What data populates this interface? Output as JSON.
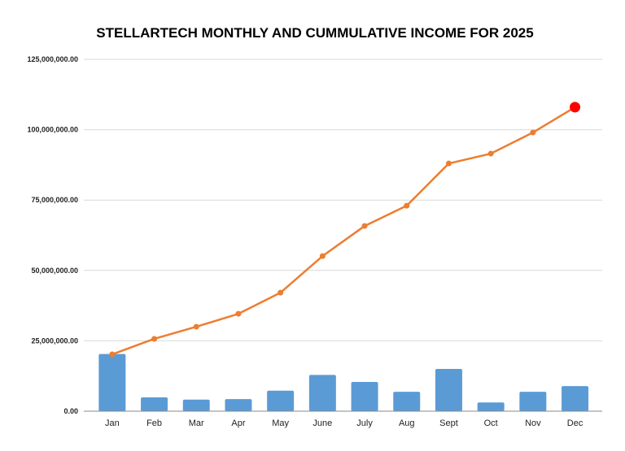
{
  "chart_data": {
    "type": "bar+line",
    "title": "STELLARTECH MONTHLY AND CUMMULATIVE INCOME FOR 2025",
    "xlabel": "",
    "ylabel": "",
    "categories": [
      "Jan",
      "Feb",
      "Mar",
      "Apr",
      "May",
      "June",
      "July",
      "Aug",
      "Sept",
      "Oct",
      "Nov",
      "Dec"
    ],
    "ylim": [
      0,
      125000000
    ],
    "yticks": [
      0,
      25000000,
      50000000,
      75000000,
      100000000,
      125000000
    ],
    "ytick_labels": [
      "0.00",
      "25,000,000.00",
      "50,000,000.00",
      "75,000,000.00",
      "100,000,000.00",
      "125,000,000.00"
    ],
    "grid": true,
    "legend": "none",
    "series": [
      {
        "type": "bar",
        "color": "#5B9BD5",
        "values": [
          20300000,
          4900000,
          4100000,
          4300000,
          7300000,
          12900000,
          10400000,
          6900000,
          15000000,
          3100000,
          6900000,
          8900000
        ]
      },
      {
        "type": "line",
        "color": "#ED7D31",
        "highlight_last_color": "#FF0000",
        "values": [
          20200000,
          25700000,
          30000000,
          34600000,
          42100000,
          55100000,
          65800000,
          73000000,
          88000000,
          91500000,
          99000000,
          108000000
        ]
      }
    ]
  }
}
